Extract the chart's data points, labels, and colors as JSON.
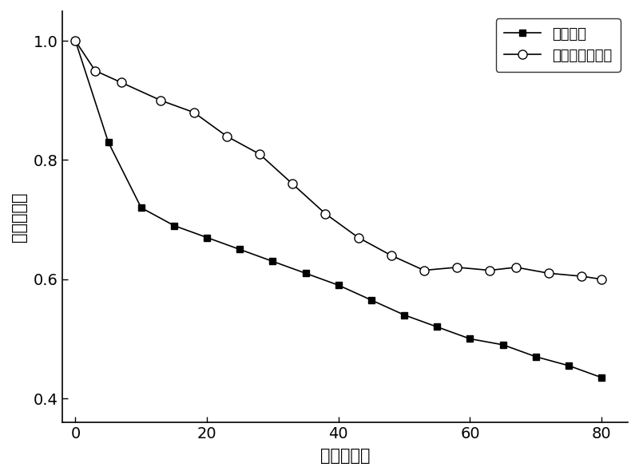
{
  "series1_label": "标准器件",
  "series2_label": "本发明结构器件",
  "series1_x": [
    0,
    5,
    10,
    15,
    20,
    25,
    30,
    35,
    40,
    45,
    50,
    55,
    60,
    65,
    70,
    75,
    80
  ],
  "series1_y": [
    1.0,
    0.83,
    0.72,
    0.69,
    0.67,
    0.65,
    0.63,
    0.61,
    0.59,
    0.565,
    0.54,
    0.52,
    0.5,
    0.49,
    0.47,
    0.455,
    0.435
  ],
  "series2_x": [
    0,
    3,
    7,
    13,
    18,
    23,
    28,
    33,
    38,
    43,
    48,
    53,
    58,
    63,
    67,
    72,
    77,
    80
  ],
  "series2_y": [
    1.0,
    0.95,
    0.93,
    0.9,
    0.88,
    0.84,
    0.81,
    0.76,
    0.71,
    0.67,
    0.64,
    0.615,
    0.62,
    0.615,
    0.62,
    0.61,
    0.605,
    0.6
  ],
  "xlabel": "时间（分）",
  "ylabel": "归一化效率",
  "xlim": [
    -2,
    84
  ],
  "ylim": [
    0.36,
    1.05
  ],
  "xticks": [
    0,
    20,
    40,
    60,
    80
  ],
  "yticks": [
    0.4,
    0.6,
    0.8,
    1.0
  ],
  "line_color": "#000000",
  "bg_color": "#ffffff",
  "legend_loc": "upper right",
  "label_fontsize": 15,
  "tick_fontsize": 14,
  "legend_fontsize": 13
}
